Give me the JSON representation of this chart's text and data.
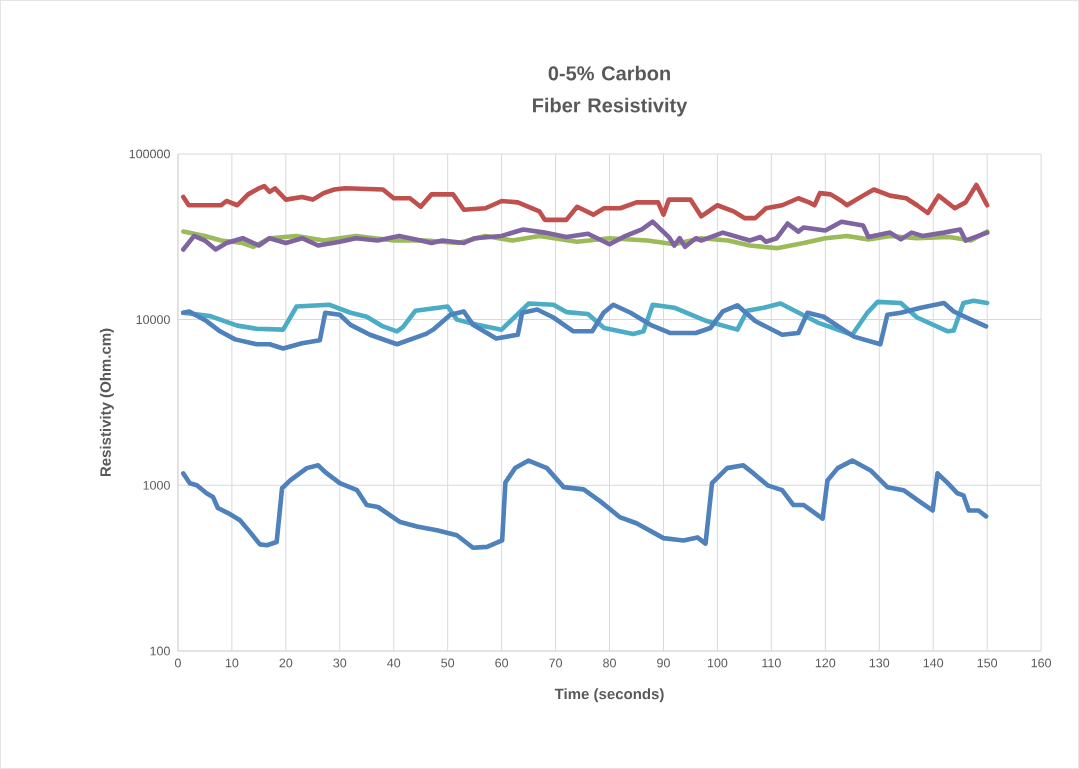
{
  "chart_data": {
    "type": "line",
    "title": "0-5% Carbon Fiber Resistivity",
    "xlabel": "Time (seconds)",
    "ylabel": "Resistivity (Ohm.cm)",
    "log": "y",
    "grid": true,
    "line_style": "solid",
    "xlim": [
      0,
      160
    ],
    "xticks": [
      0,
      10,
      20,
      30,
      40,
      50,
      60,
      70,
      80,
      90,
      100,
      110,
      120,
      130,
      140,
      150,
      160
    ],
    "ylim": [
      100,
      100000
    ],
    "yticks": [
      100,
      1000,
      10000,
      100000
    ],
    "series": [
      {
        "color": "#4f81bd",
        "x": [
          1,
          2.2,
          3.5,
          5.3,
          6.5,
          7.4,
          9.3,
          11.5,
          13.4,
          15.2,
          16.5,
          18.3,
          19.3,
          20.8,
          23.9,
          26,
          27.3,
          30,
          33.2,
          35,
          37.1,
          41.2,
          44.3,
          48,
          51.7,
          54.7,
          57.3,
          60.1,
          60.7,
          62.5,
          65,
          68.4,
          71.5,
          75.2,
          78.3,
          82,
          85,
          90,
          93.7,
          96.3,
          97.8,
          99,
          101.8,
          104.8,
          106.7,
          109.3,
          112,
          114.1,
          116,
          119.5,
          120.4,
          122.3,
          125,
          128.4,
          131.5,
          134.5,
          137.7,
          139.9,
          140.8,
          142.7,
          144.5,
          145.6,
          146.6,
          148.4,
          149.8
        ],
        "values": [
          1180,
          1030,
          1000,
          895,
          850,
          730,
          680,
          615,
          520,
          440,
          435,
          455,
          960,
          1070,
          1270,
          1320,
          1200,
          1030,
          935,
          760,
          740,
          600,
          565,
          535,
          500,
          420,
          425,
          465,
          1040,
          1270,
          1410,
          1270,
          975,
          945,
          800,
          640,
          590,
          480,
          465,
          485,
          445,
          1030,
          1270,
          1320,
          1180,
          1000,
          935,
          760,
          760,
          630,
          1070,
          1270,
          1410,
          1230,
          975,
          935,
          790,
          705,
          1180,
          1030,
          895,
          870,
          705,
          705,
          650
        ]
      },
      {
        "color": "#c0504d",
        "x": [
          1,
          2,
          8,
          9,
          11,
          13,
          15,
          16,
          17,
          18,
          20,
          23,
          25,
          27,
          29,
          31,
          38,
          40,
          43,
          45,
          47,
          51,
          53,
          57,
          60,
          63,
          67,
          68,
          72,
          74,
          77,
          79,
          82,
          85,
          89,
          90,
          91,
          95,
          97,
          100,
          103,
          105,
          107,
          109,
          112,
          115,
          117,
          118,
          119,
          121,
          123,
          124,
          127,
          129,
          132,
          135,
          137,
          139,
          141,
          144,
          146,
          148,
          150
        ],
        "values": [
          55000,
          49000,
          49000,
          52000,
          49000,
          57000,
          62000,
          64000,
          59000,
          62000,
          53000,
          55000,
          53000,
          58000,
          61000,
          62000,
          61000,
          54000,
          54000,
          48000,
          57000,
          57000,
          46000,
          47000,
          52000,
          51000,
          45000,
          40000,
          40000,
          48000,
          43000,
          47000,
          47000,
          51000,
          51000,
          43000,
          53000,
          53000,
          42000,
          49000,
          45000,
          41000,
          41000,
          47000,
          49000,
          54000,
          51000,
          49000,
          58000,
          57000,
          52000,
          49000,
          56000,
          61000,
          56000,
          54000,
          49000,
          44000,
          56000,
          47000,
          51000,
          65000,
          49000
        ]
      },
      {
        "color": "#9bbb59",
        "x": [
          1,
          5,
          8,
          12,
          14,
          17,
          22,
          27,
          33,
          40,
          46,
          52,
          57,
          62,
          67,
          74,
          80,
          87,
          92,
          97,
          102,
          106,
          111,
          116,
          120,
          124,
          128,
          132,
          137,
          143,
          147,
          150
        ],
        "values": [
          34000,
          32000,
          30000,
          29000,
          27500,
          31000,
          32000,
          30000,
          32000,
          30000,
          30000,
          29000,
          32000,
          30000,
          32000,
          29500,
          31000,
          30000,
          28500,
          31000,
          30000,
          28000,
          27000,
          29000,
          31000,
          32000,
          30500,
          32000,
          31000,
          31500,
          30000,
          34000
        ]
      },
      {
        "color": "#8064a2",
        "x": [
          1,
          3,
          5,
          7,
          9,
          12,
          15,
          17,
          20,
          23,
          26,
          30,
          33,
          37,
          41,
          45,
          47,
          49,
          53,
          55,
          60,
          64,
          68,
          72,
          76,
          80,
          83,
          86,
          88,
          91,
          92,
          93,
          94,
          96,
          97,
          101,
          106,
          108,
          109,
          111,
          113,
          115,
          116,
          120,
          123,
          127,
          128,
          132,
          134,
          136,
          138,
          142,
          145,
          146,
          150
        ],
        "values": [
          26500,
          32000,
          30000,
          26500,
          29000,
          31000,
          28000,
          31000,
          29000,
          31000,
          28000,
          29500,
          31000,
          30000,
          32000,
          30000,
          29000,
          30000,
          29000,
          31000,
          32000,
          35000,
          33500,
          31500,
          33000,
          28500,
          32000,
          35000,
          39000,
          31500,
          28000,
          31000,
          27500,
          31000,
          30000,
          33500,
          30000,
          31500,
          29500,
          31000,
          38000,
          34000,
          36000,
          34500,
          39000,
          37000,
          31500,
          33500,
          30500,
          33500,
          32000,
          33500,
          35000,
          30000,
          33500
        ]
      },
      {
        "color": "#4bacc6",
        "x": [
          1,
          6,
          11,
          14.6,
          19.5,
          22,
          28,
          32,
          35,
          38,
          40.6,
          41.7,
          44,
          50,
          51.7,
          55.5,
          60,
          65,
          69.6,
          72,
          76,
          79,
          84.4,
          86.3,
          88,
          92,
          98,
          103.7,
          105.5,
          108.6,
          111.7,
          118.6,
          125,
          127.8,
          129.7,
          134,
          137,
          142.7,
          143.8,
          145.6,
          147.5,
          150
        ],
        "values": [
          11000,
          10500,
          9200,
          8800,
          8700,
          12000,
          12300,
          11000,
          10400,
          9100,
          8500,
          9000,
          11300,
          12000,
          10000,
          9300,
          8700,
          12500,
          12300,
          11100,
          10800,
          8900,
          8200,
          8500,
          12300,
          11800,
          9800,
          8700,
          11300,
          11800,
          12500,
          9600,
          8100,
          11000,
          12800,
          12600,
          10300,
          8500,
          8600,
          12600,
          13000,
          12600
        ]
      },
      {
        "color": "#4f81bd",
        "x": [
          1,
          2.1,
          5.3,
          7.8,
          10.6,
          14.6,
          17,
          19.5,
          23,
          26.3,
          27.3,
          30,
          32,
          35.6,
          40.6,
          46,
          47.3,
          50.5,
          53,
          54.7,
          59,
          63,
          63.8,
          66.6,
          69.6,
          73.3,
          76.8,
          78.9,
          80.7,
          83.9,
          87.6,
          91.3,
          96,
          98.7,
          101,
          103.7,
          107,
          112,
          115,
          116.7,
          119.7,
          125.3,
          130.2,
          131.5,
          134,
          137.7,
          142,
          143.8,
          147,
          149.8
        ],
        "values": [
          11000,
          11200,
          9800,
          8500,
          7600,
          7100,
          7100,
          6700,
          7200,
          7500,
          11000,
          10700,
          9300,
          8100,
          7100,
          8200,
          8700,
          10700,
          11200,
          9300,
          7700,
          8100,
          11000,
          11500,
          10300,
          8500,
          8500,
          11000,
          12300,
          11000,
          9300,
          8300,
          8300,
          8900,
          11200,
          12200,
          9800,
          8100,
          8300,
          11000,
          10400,
          7900,
          7100,
          10700,
          11000,
          11800,
          12600,
          11200,
          10000,
          9100
        ]
      }
    ]
  }
}
